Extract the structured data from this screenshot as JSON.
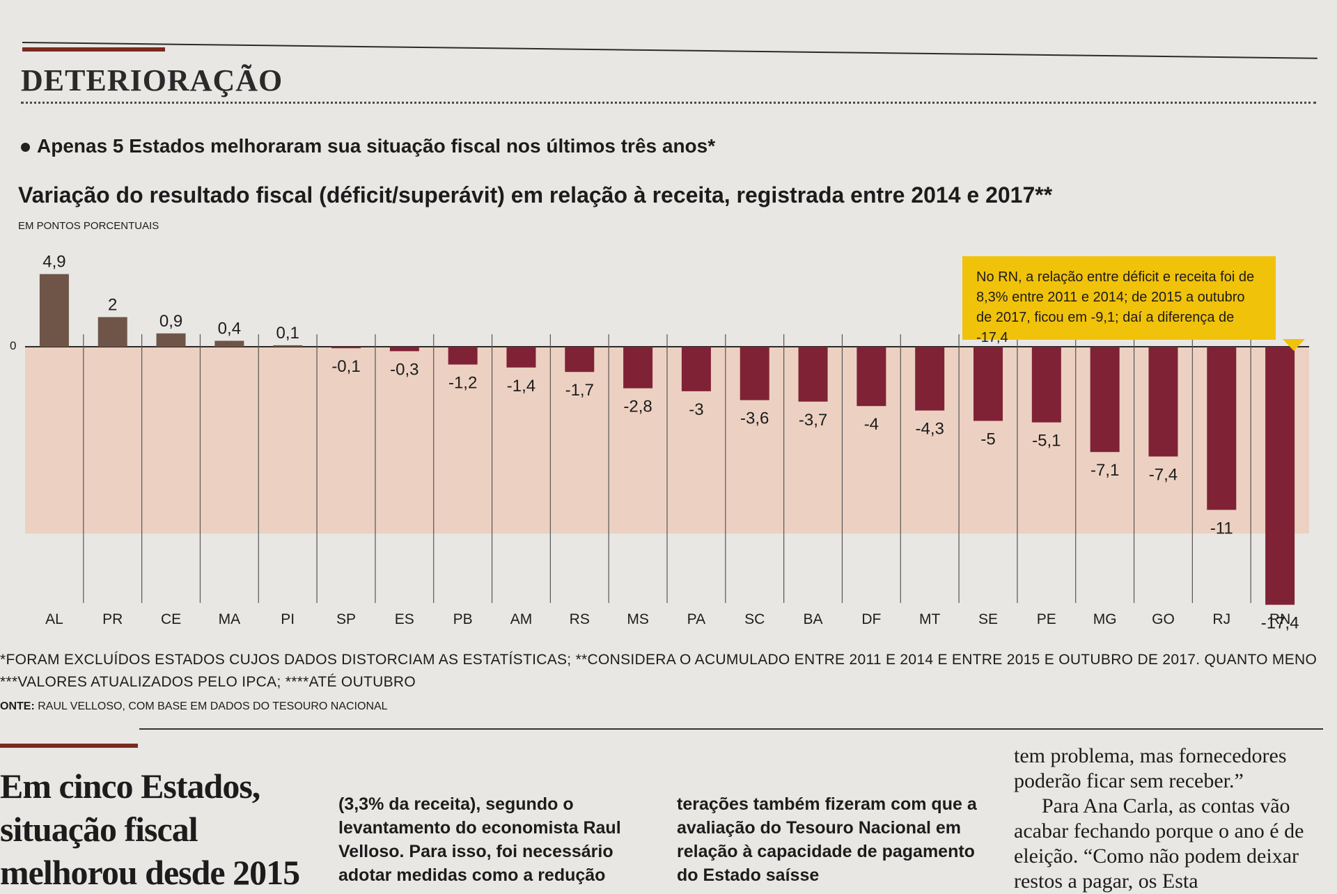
{
  "header": {
    "section": "DETERIORAÇÃO",
    "subtitle": "Apenas 5 Estados melhoraram sua situação fiscal nos últimos três anos*",
    "chart_title": "Variação do resultado fiscal (déficit/superávit) em relação à receita, registrada entre 2014 e 2017**",
    "unit": "EM PONTOS PORCENTUAIS"
  },
  "chart_data": {
    "type": "bar",
    "title": "Variação do resultado fiscal (déficit/superávit) em relação à receita, registrada entre 2014 e 2017**",
    "ylabel": "EM PONTOS PORCENTUAIS",
    "xlabel": "",
    "zero_label": "0",
    "ylim": [
      -17.4,
      4.9
    ],
    "categories": [
      "AL",
      "PR",
      "CE",
      "MA",
      "PI",
      "SP",
      "ES",
      "PB",
      "AM",
      "RS",
      "MS",
      "PA",
      "SC",
      "BA",
      "DF",
      "MT",
      "SE",
      "PE",
      "MG",
      "GO",
      "RJ",
      "RN"
    ],
    "values": [
      4.9,
      2,
      0.9,
      0.4,
      0.1,
      -0.1,
      -0.3,
      -1.2,
      -1.4,
      -1.7,
      -2.8,
      -3,
      -3.6,
      -3.7,
      -4,
      -4.3,
      -5,
      -5.1,
      -7.1,
      -7.4,
      -11,
      -17.4
    ],
    "value_labels": [
      "4,9",
      "2",
      "0,9",
      "0,4",
      "0,1",
      "-0,1",
      "-0,3",
      "-1,2",
      "-1,4",
      "-1,7",
      "-2,8",
      "-3",
      "-3,6",
      "-3,7",
      "-4",
      "-4,3",
      "-5",
      "-5,1",
      "-7,1",
      "-7,4",
      "-11",
      "-17,4"
    ],
    "colors": {
      "positive": "#6e5548",
      "negative": "#7f2235",
      "panel": "#ecd1c2"
    }
  },
  "callout": {
    "text": "No RN, a relação entre déficit e receita foi de 8,3% entre 2011 e 2014; de 2015 a outubro de 2017, ficou em -9,1; daí a diferença de -17,4"
  },
  "footnotes": {
    "line1": "*FORAM EXCLUÍDOS ESTADOS CUJOS DADOS DISTORCIAM AS ESTATÍSTICAS; **CONSIDERA O ACUMULADO ENTRE 2011 E 2014 E ENTRE 2015 E OUTUBRO DE 2017. QUANTO MENO",
    "line2": "***VALORES ATUALIZADOS PELO IPCA; ****ATÉ OUTUBRO",
    "source_label": "ONTE:",
    "source_text": "RAUL VELLOSO, COM BASE EM DADOS DO TESOURO NACIONAL"
  },
  "article": {
    "headline_1": "Em cinco Estados,",
    "headline_2": "situação fiscal",
    "headline_3": "melhorou desde 2015",
    "col1": "(3,3% da receita), segundo o levantamento do economista Raul Velloso. Para isso, foi necessário adotar medidas como a redução",
    "col2": "terações também fizeram com que a avaliação do Tesouro Nacional em relação à capacidade de pagamento do Estado saísse",
    "col3_1": "tem problema, mas fornecedores poderão ficar sem receber.”",
    "col3_2": "Para Ana Carla, as contas vão acabar fechando porque o ano é de eleição. “Como não podem deixar restos a pagar, os Esta"
  }
}
